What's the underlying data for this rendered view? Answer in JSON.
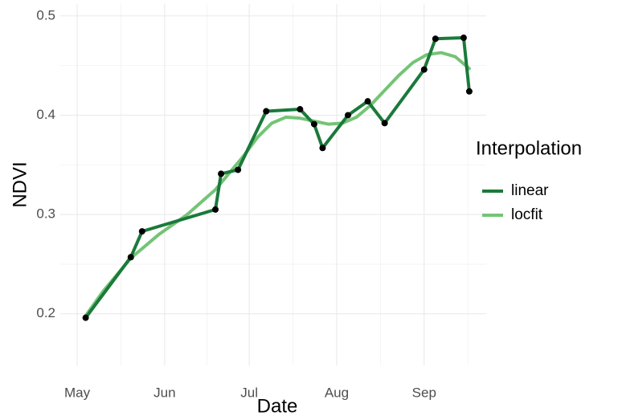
{
  "chart_data": {
    "type": "line",
    "x_label": "Date",
    "y_label": "NDVI",
    "legend_title": "Interpolation",
    "legend_position": "right",
    "grid": true,
    "xlim": [
      115,
      266
    ],
    "xticks": [
      {
        "value": 121,
        "label": "May"
      },
      {
        "value": 152,
        "label": "Jun"
      },
      {
        "value": 182,
        "label": "Jul"
      },
      {
        "value": 213,
        "label": "Aug"
      },
      {
        "value": 244,
        "label": "Sep"
      }
    ],
    "ylim": [
      0.148,
      0.512
    ],
    "yticks": [
      0.2,
      0.3,
      0.4,
      0.5
    ],
    "point_color": "#000000",
    "series": [
      {
        "name": "linear",
        "color": "#1a7a3a",
        "points": true,
        "x": [
          124,
          140,
          144,
          170,
          172,
          178,
          188,
          200,
          205,
          208,
          217,
          224,
          230,
          244,
          248,
          258,
          260
        ],
        "values": [
          0.196,
          0.257,
          0.283,
          0.305,
          0.341,
          0.345,
          0.404,
          0.406,
          0.391,
          0.367,
          0.4,
          0.414,
          0.392,
          0.446,
          0.477,
          0.478,
          0.424
        ]
      },
      {
        "name": "locfit",
        "color": "#74c476",
        "points": false,
        "x": [
          124,
          130,
          140,
          150,
          160,
          170,
          180,
          185,
          190,
          195,
          200,
          205,
          210,
          215,
          220,
          225,
          230,
          235,
          240,
          245,
          250,
          255,
          260
        ],
        "values": [
          0.198,
          0.222,
          0.256,
          0.28,
          0.3,
          0.325,
          0.359,
          0.378,
          0.392,
          0.398,
          0.397,
          0.394,
          0.391,
          0.392,
          0.398,
          0.41,
          0.425,
          0.44,
          0.453,
          0.461,
          0.463,
          0.459,
          0.447
        ]
      }
    ]
  }
}
